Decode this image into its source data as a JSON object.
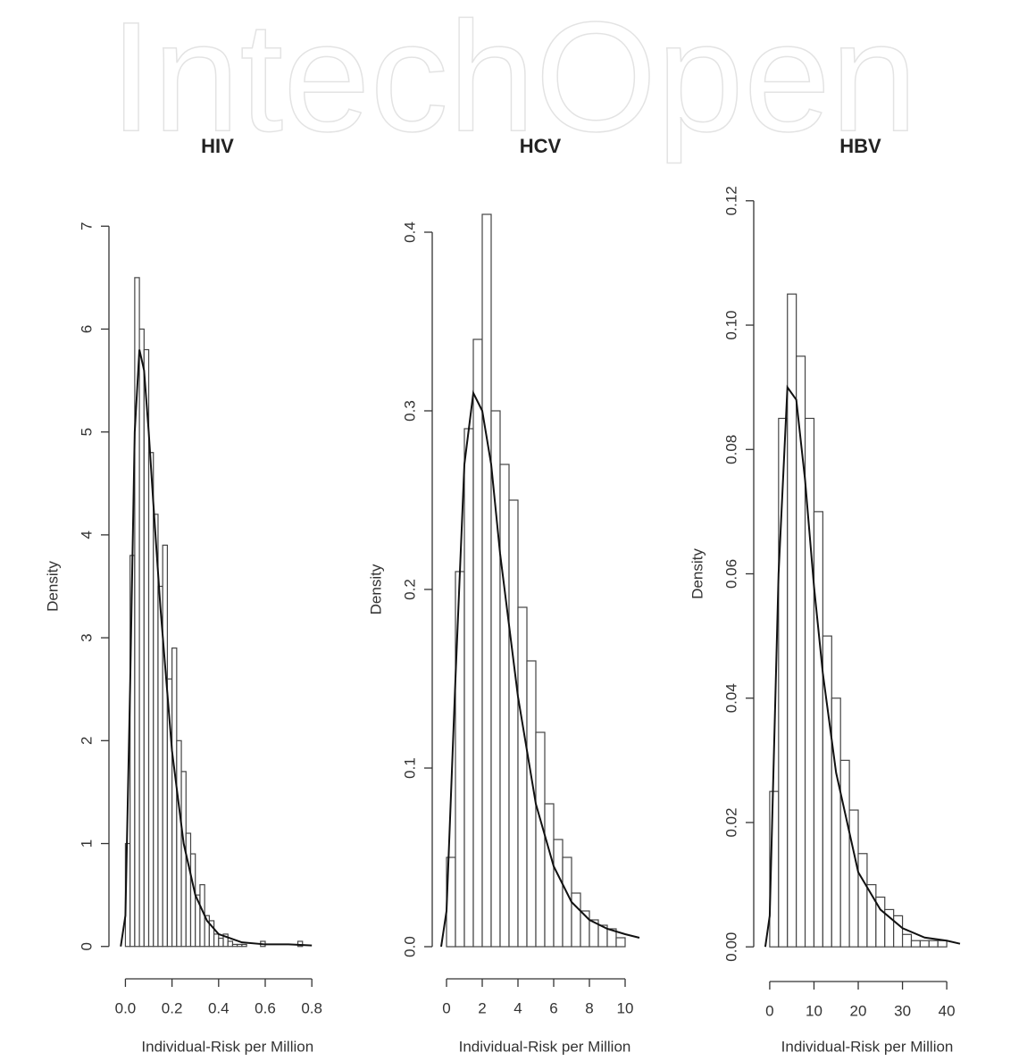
{
  "watermark": "IntechOpen",
  "chart_data": [
    {
      "type": "histogram",
      "title": "HIV",
      "xlabel": "Individual-Risk per Million",
      "ylabel": "Density",
      "bins": [
        0,
        0.02,
        0.04,
        0.06,
        0.08,
        0.1,
        0.12,
        0.14,
        0.16,
        0.18,
        0.2,
        0.22,
        0.24,
        0.26,
        0.28,
        0.3,
        0.32,
        0.34,
        0.36,
        0.38,
        0.4,
        0.42,
        0.44,
        0.46,
        0.48,
        0.5,
        0.52,
        0.54,
        0.56,
        0.58,
        0.6,
        0.62,
        0.64,
        0.66,
        0.68,
        0.7,
        0.72,
        0.74,
        0.76
      ],
      "values": [
        1.0,
        3.8,
        6.5,
        6.0,
        5.8,
        4.8,
        4.2,
        3.5,
        3.9,
        2.6,
        2.9,
        2.0,
        1.7,
        1.1,
        0.9,
        0.5,
        0.6,
        0.3,
        0.25,
        0.12,
        0.08,
        0.12,
        0.05,
        0.02,
        0.02,
        0.02,
        0,
        0,
        0,
        0.05,
        0,
        0,
        0,
        0,
        0,
        0,
        0,
        0.05
      ],
      "density_curve": {
        "x": [
          -0.02,
          0,
          0.02,
          0.04,
          0.06,
          0.08,
          0.1,
          0.12,
          0.15,
          0.2,
          0.25,
          0.3,
          0.35,
          0.4,
          0.5,
          0.6,
          0.7,
          0.8
        ],
        "y": [
          0,
          0.3,
          2.5,
          5.0,
          5.8,
          5.6,
          5.0,
          4.3,
          3.3,
          1.9,
          1.0,
          0.5,
          0.25,
          0.12,
          0.04,
          0.02,
          0.02,
          0.01
        ]
      },
      "xlim": [
        -0.04,
        0.83
      ],
      "ylim": [
        -0.28,
        7.28
      ],
      "xticks": [
        {
          "value": 0,
          "label": "0.0"
        },
        0.2,
        0.4,
        0.6,
        0.8
      ],
      "yticks": [
        0,
        1,
        2,
        3,
        4,
        5,
        6,
        7
      ]
    },
    {
      "type": "histogram",
      "title": "HCV",
      "xlabel": "Individual-Risk per Million",
      "ylabel": "Density",
      "bins": [
        0,
        0.5,
        1,
        1.5,
        2,
        2.5,
        3,
        3.5,
        4,
        4.5,
        5,
        5.5,
        6,
        6.5,
        7,
        7.5,
        8,
        8.5,
        9,
        9.5,
        10
      ],
      "values": [
        0.05,
        0.21,
        0.29,
        0.34,
        0.41,
        0.3,
        0.27,
        0.25,
        0.19,
        0.16,
        0.12,
        0.08,
        0.06,
        0.05,
        0.03,
        0.02,
        0.015,
        0.012,
        0.01,
        0.005
      ],
      "density_curve": {
        "x": [
          -0.3,
          0,
          0.5,
          1,
          1.5,
          2,
          2.5,
          3,
          4,
          5,
          6,
          7,
          8,
          9,
          10,
          10.8
        ],
        "y": [
          0,
          0.02,
          0.15,
          0.27,
          0.31,
          0.3,
          0.27,
          0.22,
          0.14,
          0.08,
          0.045,
          0.025,
          0.015,
          0.01,
          0.007,
          0.005
        ]
      },
      "xlim": [
        -0.4,
        10.9
      ],
      "ylim": [
        -0.016,
        0.416
      ],
      "xticks": [
        0,
        2,
        4,
        6,
        8,
        10
      ],
      "yticks": [
        {
          "value": 0,
          "label": "0.0"
        },
        0.1,
        0.2,
        0.3,
        0.4
      ]
    },
    {
      "type": "histogram",
      "title": "HBV",
      "xlabel": "Individual-Risk per Million",
      "ylabel": "Density",
      "bins": [
        0,
        2,
        4,
        6,
        8,
        10,
        12,
        14,
        16,
        18,
        20,
        22,
        24,
        26,
        28,
        30,
        32,
        34,
        36,
        38,
        40
      ],
      "values": [
        0.025,
        0.085,
        0.105,
        0.095,
        0.085,
        0.07,
        0.05,
        0.04,
        0.03,
        0.022,
        0.015,
        0.01,
        0.008,
        0.006,
        0.005,
        0.002,
        0.001,
        0.001,
        0.001,
        0.001
      ],
      "density_curve": {
        "x": [
          -1,
          0,
          2,
          4,
          6,
          8,
          10,
          12,
          15,
          20,
          25,
          30,
          35,
          40,
          43
        ],
        "y": [
          0,
          0.005,
          0.06,
          0.09,
          0.088,
          0.075,
          0.058,
          0.044,
          0.028,
          0.012,
          0.006,
          0.003,
          0.0015,
          0.001,
          0.0005
        ]
      },
      "xlim": [
        -2,
        43
      ],
      "ylim": [
        -0.005,
        0.125
      ],
      "xticks": [
        0,
        10,
        20,
        30,
        40
      ],
      "yticks": [
        {
          "value": 0,
          "label": "0.00"
        },
        {
          "value": 0.02,
          "label": "0.02"
        },
        {
          "value": 0.04,
          "label": "0.04"
        },
        {
          "value": 0.06,
          "label": "0.06"
        },
        {
          "value": 0.08,
          "label": "0.08"
        },
        {
          "value": 0.1,
          "label": "0.10"
        },
        {
          "value": 0.12,
          "label": "0.12"
        }
      ]
    }
  ]
}
